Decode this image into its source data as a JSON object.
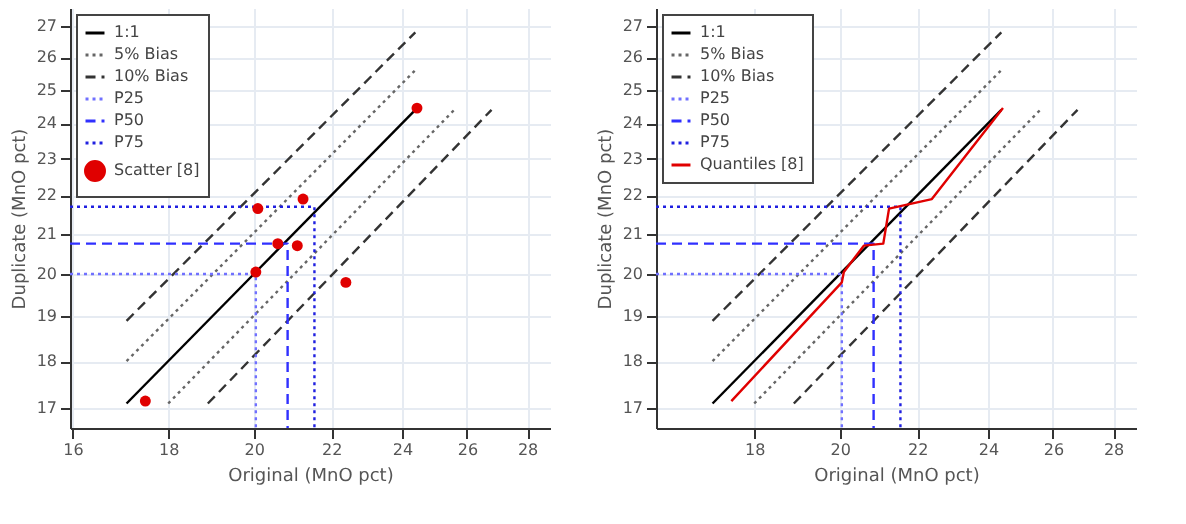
{
  "chart_data": [
    {
      "type": "line",
      "xlabel": "Original (MnO pct)",
      "ylabel": "Duplicate (MnO pct)",
      "log": "xy",
      "grid": true,
      "legend": "top left",
      "xlim": [
        15.95,
        28.8
      ],
      "ylim": [
        16.6,
        27.6
      ],
      "xticks": [
        16,
        18,
        20,
        22,
        24,
        26,
        28
      ],
      "yticks": [
        17,
        18,
        19,
        20,
        21,
        22,
        23,
        24,
        25,
        26,
        27
      ],
      "series": [
        {
          "name": "1:1",
          "line_style": "solid",
          "color": "#000000",
          "x": [
            17.1,
            24.4
          ],
          "values": [
            17.1,
            24.4
          ]
        },
        {
          "name": "5% Bias",
          "line_style": "dotted",
          "color": "#666666",
          "x": [
            17.1,
            24.4,
            null,
            18.0,
            25.6
          ],
          "values": [
            18.0,
            25.6,
            null,
            17.1,
            24.4
          ]
        },
        {
          "name": "10% Bias",
          "line_style": "dashed",
          "color": "#333333",
          "x": [
            17.1,
            24.4,
            null,
            18.9,
            26.8
          ],
          "values": [
            18.9,
            26.8,
            null,
            17.1,
            24.4
          ]
        },
        {
          "name": "P25",
          "line_style": "dotted",
          "color": "#7070ff",
          "x": [
            15.95,
            20.05,
            20.05
          ],
          "values": [
            20.0,
            20.0,
            16.6
          ]
        },
        {
          "name": "P50",
          "line_style": "dashed",
          "color": "#3030ff",
          "x": [
            15.95,
            20.85,
            20.85
          ],
          "values": [
            20.75,
            20.75,
            16.6
          ]
        },
        {
          "name": "P75",
          "line_style": "dotted",
          "color": "#2020e0",
          "x": [
            15.95,
            21.55,
            21.55
          ],
          "values": [
            21.7,
            21.7,
            16.6
          ]
        },
        {
          "name": "Scatter [8]",
          "type": "scatter",
          "marker": "circle",
          "color": "#e00000",
          "x": [
            17.5,
            20.05,
            20.1,
            20.6,
            21.1,
            21.25,
            22.4,
            24.45
          ],
          "values": [
            17.15,
            20.05,
            21.65,
            20.75,
            20.7,
            21.9,
            19.8,
            24.45
          ]
        }
      ]
    },
    {
      "type": "line",
      "xlabel": "Original (MnO pct)",
      "ylabel": "Duplicate (MnO pct)",
      "log": "xy",
      "grid": true,
      "legend": "top left",
      "xlim": [
        15.95,
        28.8
      ],
      "ylim": [
        16.6,
        27.6
      ],
      "xticks": [
        18,
        20,
        22,
        24,
        26,
        28
      ],
      "yticks": [
        17,
        18,
        19,
        20,
        21,
        22,
        23,
        24,
        25,
        26,
        27
      ],
      "series": [
        {
          "name": "1:1",
          "line_style": "solid",
          "color": "#000000",
          "x": [
            17.1,
            24.4
          ],
          "values": [
            17.1,
            24.4
          ]
        },
        {
          "name": "5% Bias",
          "line_style": "dotted",
          "color": "#666666",
          "x": [
            17.1,
            24.4,
            null,
            18.0,
            25.6
          ],
          "values": [
            18.0,
            25.6,
            null,
            17.1,
            24.4
          ]
        },
        {
          "name": "10% Bias",
          "line_style": "dashed",
          "color": "#333333",
          "x": [
            17.1,
            24.4,
            null,
            18.9,
            26.8
          ],
          "values": [
            18.9,
            26.8,
            null,
            17.1,
            24.4
          ]
        },
        {
          "name": "P25",
          "line_style": "dotted",
          "color": "#7070ff",
          "x": [
            15.95,
            20.05,
            20.05
          ],
          "values": [
            20.0,
            20.0,
            16.6
          ]
        },
        {
          "name": "P50",
          "line_style": "dashed",
          "color": "#3030ff",
          "x": [
            15.95,
            20.85,
            20.85
          ],
          "values": [
            20.75,
            20.75,
            16.6
          ]
        },
        {
          "name": "P75",
          "line_style": "dotted",
          "color": "#2020e0",
          "x": [
            15.95,
            21.55,
            21.55
          ],
          "values": [
            21.7,
            21.7,
            16.6
          ]
        },
        {
          "name": "Quantiles [8]",
          "line_style": "solid",
          "color": "#e00000",
          "x": [
            17.5,
            20.05,
            20.1,
            20.6,
            21.1,
            21.25,
            22.4,
            24.45
          ],
          "values": [
            17.15,
            19.8,
            20.05,
            20.7,
            20.75,
            21.65,
            21.9,
            24.45
          ]
        }
      ]
    }
  ]
}
